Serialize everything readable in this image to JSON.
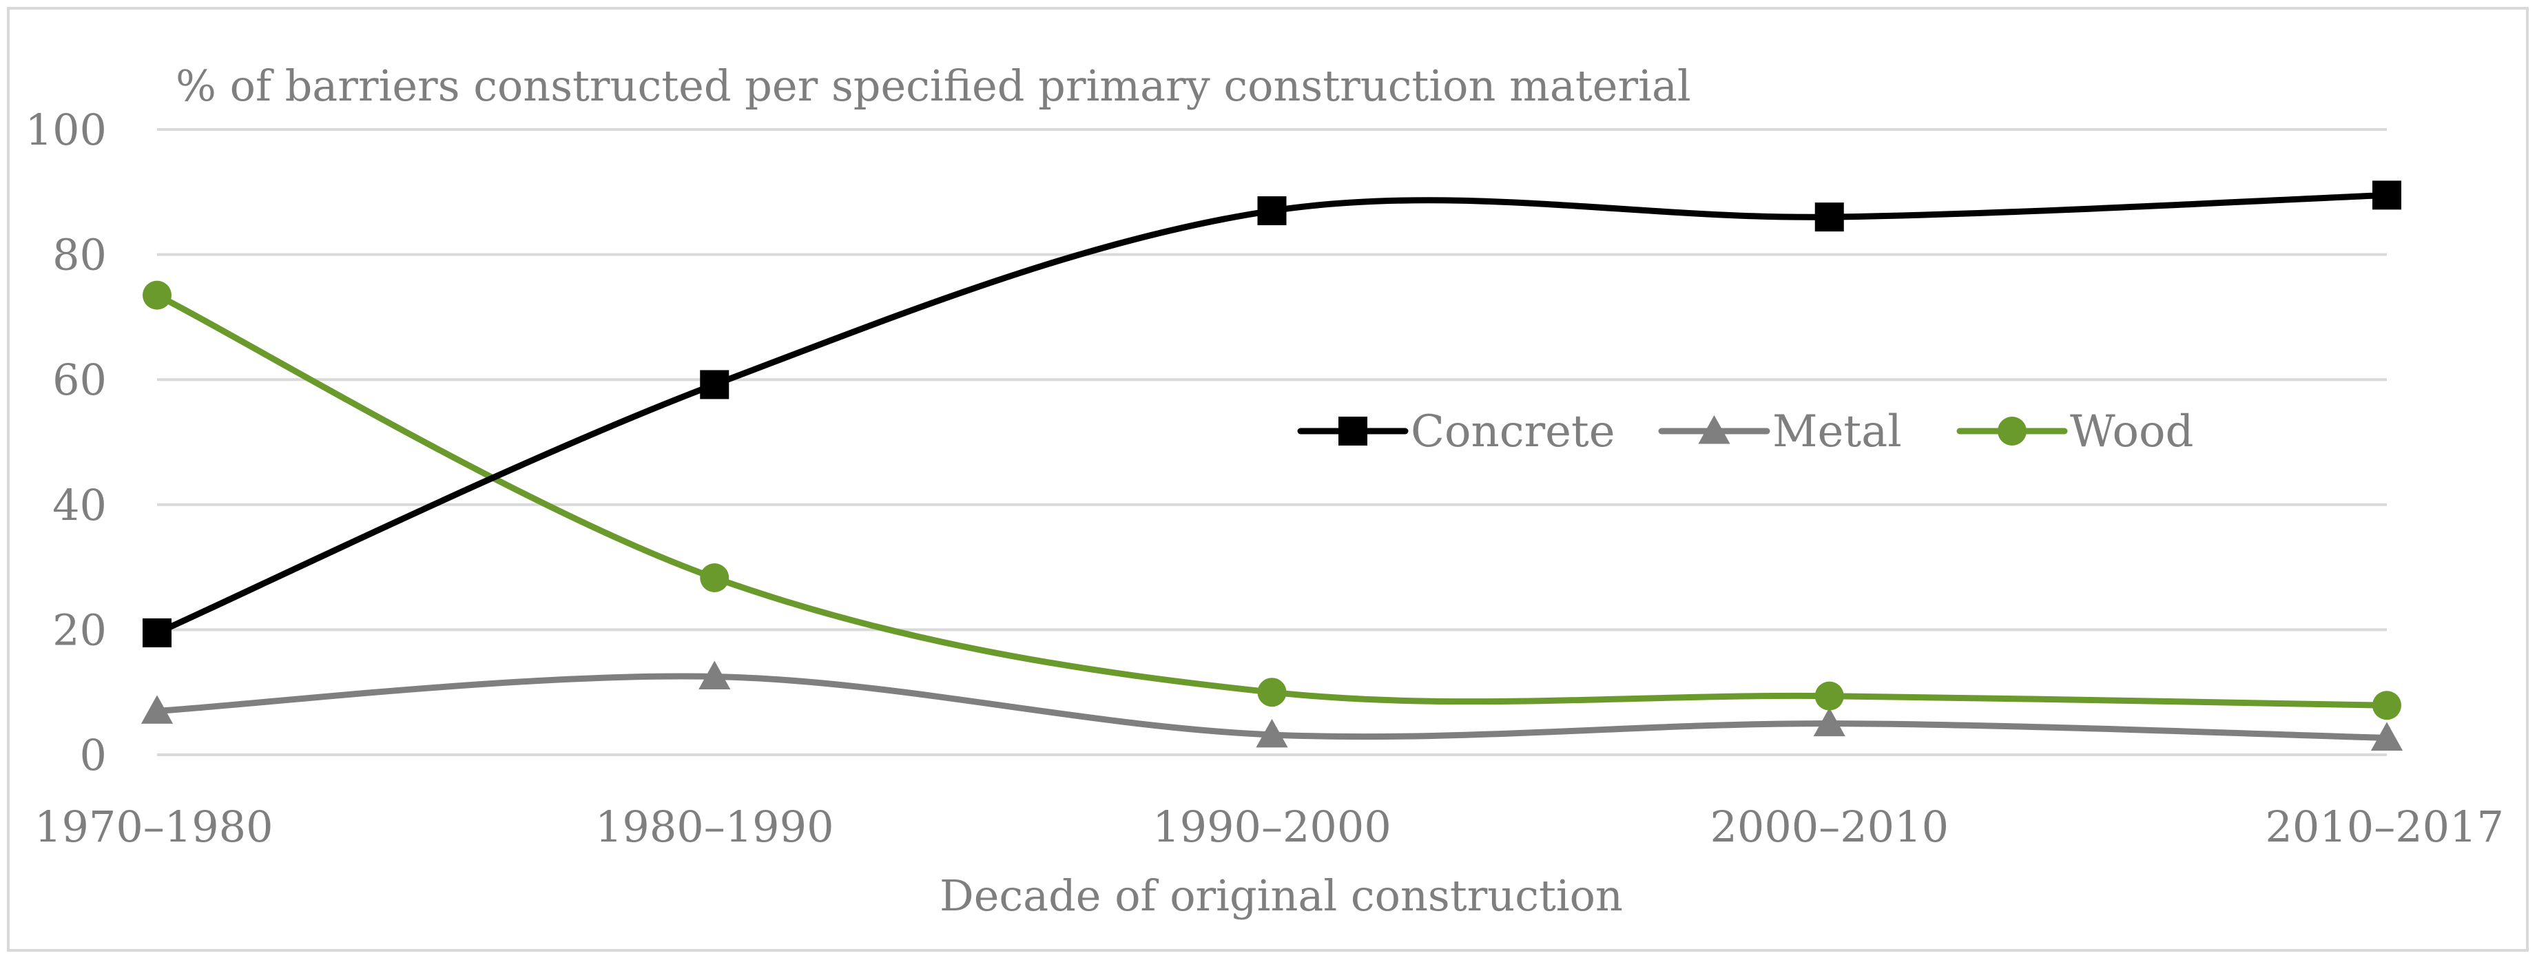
{
  "chart_data": {
    "type": "line",
    "title": "% of barriers constructed per specified primary construction material",
    "xlabel": "Decade of original construction",
    "ylabel": "",
    "categories": [
      "1970–1980",
      "1980–1990",
      "1990–2000",
      "2000–2010",
      "2010–2017"
    ],
    "ylim": [
      0,
      100
    ],
    "yticks": [
      0,
      20,
      40,
      60,
      80,
      100
    ],
    "grid": true,
    "smooth": true,
    "legend_position": "center-right",
    "series": [
      {
        "name": "Concrete",
        "values": [
          19.5,
          59.2,
          87.0,
          86.0,
          89.5
        ],
        "color": "#000000",
        "marker": "square"
      },
      {
        "name": "Metal",
        "values": [
          7.0,
          12.5,
          3.2,
          5.0,
          2.7
        ],
        "color": "#7f7f7f",
        "marker": "triangle"
      },
      {
        "name": "Wood",
        "values": [
          73.5,
          28.3,
          10.0,
          9.4,
          7.9
        ],
        "color": "#6a9a2c",
        "marker": "circle"
      }
    ]
  }
}
